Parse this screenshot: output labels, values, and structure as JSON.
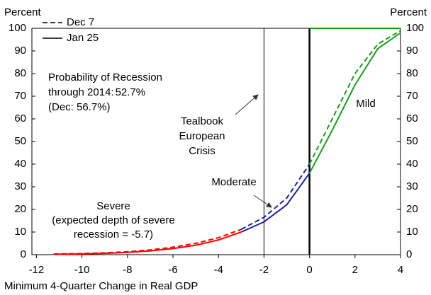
{
  "chart_data": {
    "type": "line",
    "xlabel": "Minimum 4-Quarter Change in Real GDP",
    "ylabel": "Percent",
    "y2label": "Percent",
    "x": [
      -11.25,
      -10,
      -9,
      -8,
      -7,
      -6,
      -5,
      -4,
      -3,
      -2,
      -1,
      0,
      1,
      2,
      3,
      4
    ],
    "xlim": [
      -12.2,
      4
    ],
    "xticks": [
      -12,
      -10,
      -8,
      -6,
      -4,
      -2,
      0,
      2,
      4
    ],
    "ylim": [
      0,
      100
    ],
    "yticks": [
      0,
      10,
      20,
      30,
      40,
      50,
      60,
      70,
      80,
      90,
      100
    ],
    "y2lim": [
      0,
      100
    ],
    "y2ticks": [
      0,
      10,
      20,
      30,
      40,
      50,
      60,
      70,
      80,
      90,
      100
    ],
    "vlines": [
      {
        "x": -2,
        "width": 1
      },
      {
        "x": 0,
        "width": 2.5
      }
    ],
    "series": [
      {
        "name": "Dec 7",
        "dash": "dashed",
        "values": [
          0.3,
          0.5,
          0.8,
          1.3,
          2.1,
          3.3,
          5,
          7.5,
          11.2,
          16.5,
          25,
          40,
          60,
          80,
          93,
          99
        ]
      },
      {
        "name": "Jan 25",
        "dash": "solid",
        "values": [
          0.2,
          0.3,
          0.6,
          1,
          1.7,
          2.7,
          4.2,
          6.5,
          10,
          14.5,
          22,
          36,
          55,
          75,
          91,
          98
        ]
      }
    ],
    "regions": [
      {
        "label": [
          "Severe",
          "(expected depth of severe",
          "recession = -5.7)"
        ],
        "color": "#ff0000",
        "end": -3
      },
      {
        "label": [
          "Moderate"
        ],
        "color": "#1f1f9f",
        "end": 0
      },
      {
        "label": [
          "Mild"
        ],
        "color": "#1e9a1e",
        "end": 4
      }
    ],
    "annotation": {
      "lines": [
        "Probability of Recession",
        "through 2014: "
      ],
      "highlight": "52.7%",
      "note": "(Dec: 56.7%)",
      "color": "#ff0000"
    },
    "crisis_label": [
      "Tealbook",
      "European",
      "Crisis"
    ]
  }
}
